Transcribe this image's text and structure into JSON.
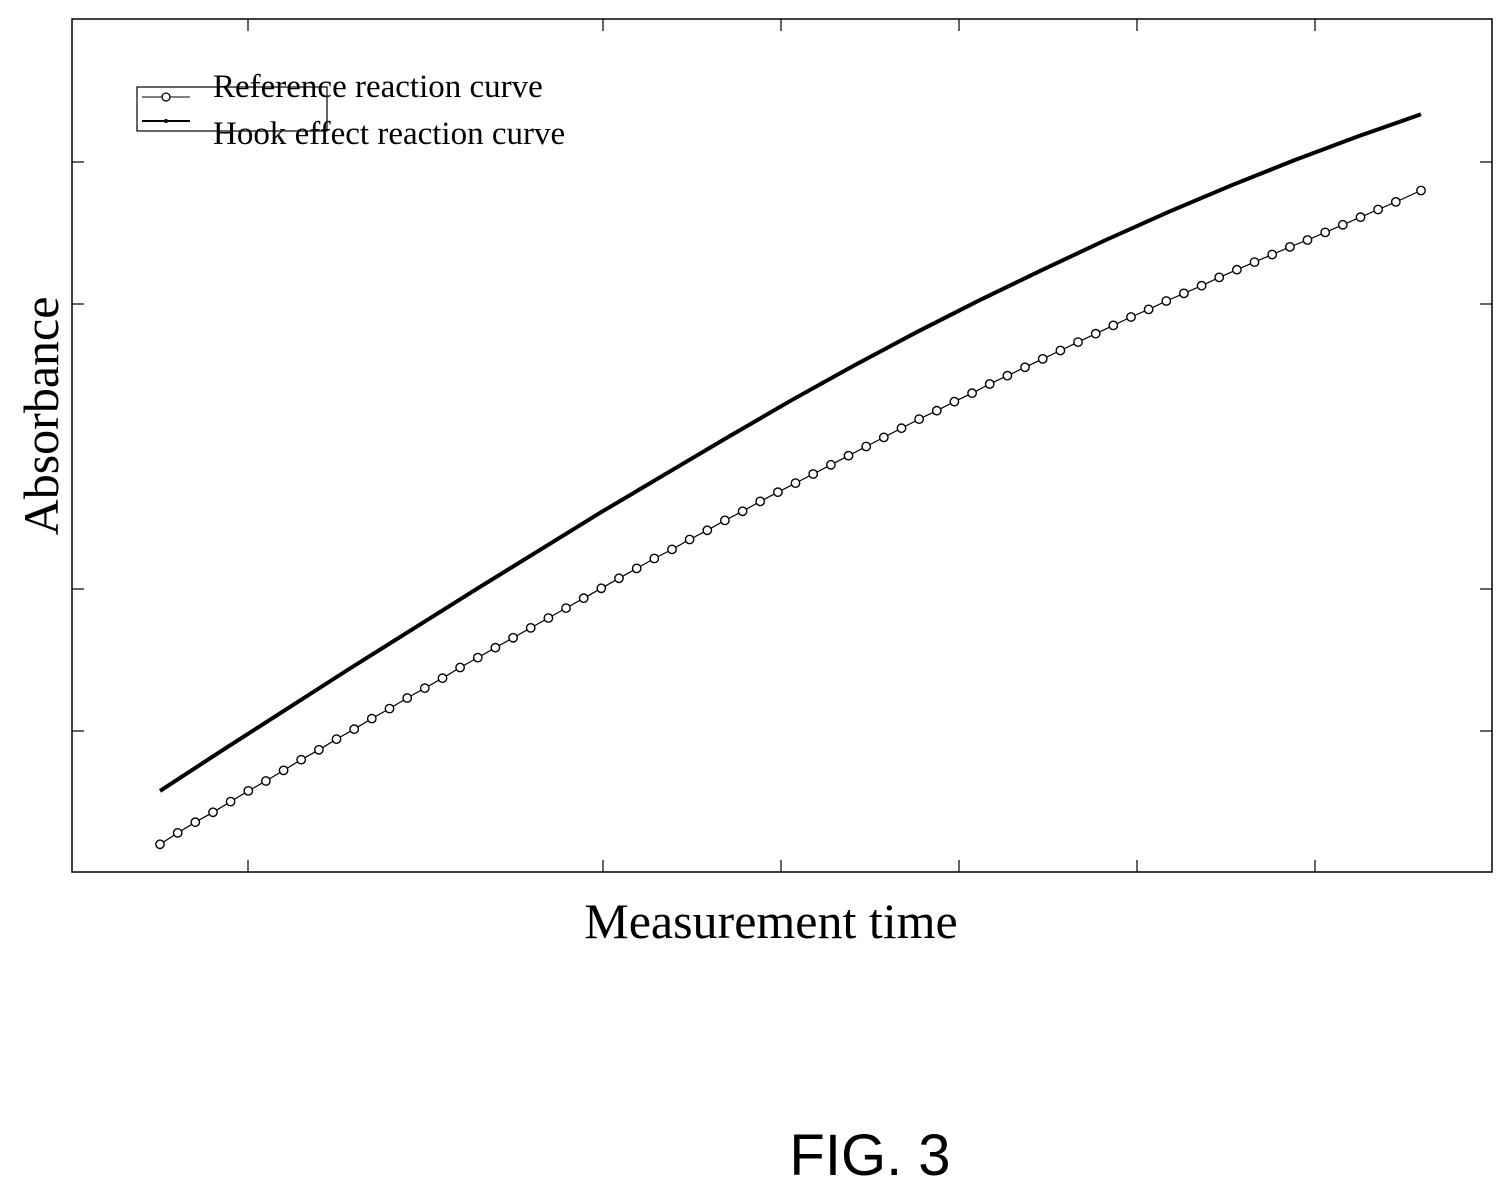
{
  "figure": {
    "caption": "FIG. 3"
  },
  "chart_data": {
    "type": "line",
    "title": "",
    "xlabel": "Measurement time",
    "ylabel": "Absorbance",
    "xlim": [
      0,
      100
    ],
    "ylim": [
      0,
      100
    ],
    "grid": false,
    "tick_labels": false,
    "legend": {
      "placement": "top-left"
    },
    "series": [
      {
        "name": "Reference reaction curve",
        "marker": "circle",
        "color": "#000000",
        "x": [
          0,
          1.4,
          2.8,
          4.2,
          5.6,
          7.0,
          8.4,
          9.8,
          11.2,
          12.6,
          14.0,
          15.4,
          16.8,
          18.2,
          19.6,
          21.0,
          22.4,
          23.8,
          25.2,
          26.6,
          28.0,
          29.4,
          30.8,
          32.2,
          33.6,
          35.0,
          36.4,
          37.8,
          39.2,
          40.6,
          42.0,
          43.4,
          44.8,
          46.2,
          47.6,
          49.0,
          50.4,
          51.8,
          53.2,
          54.6,
          56.0,
          57.4,
          58.8,
          60.2,
          61.6,
          63.0,
          64.4,
          65.8,
          67.2,
          68.6,
          70.0,
          71.4,
          72.8,
          74.2,
          75.6,
          77.0,
          78.4,
          79.8,
          81.2,
          82.6,
          84.0,
          85.4,
          86.8,
          88.2,
          89.6,
          91.0,
          92.4,
          93.8,
          95.2,
          96.6,
          98.0,
          100.0
        ],
        "y": [
          1.8,
          3.3,
          4.7,
          6.0,
          7.4,
          8.8,
          10.1,
          11.5,
          12.9,
          14.2,
          15.6,
          16.9,
          18.3,
          19.6,
          21.0,
          22.3,
          23.6,
          25.0,
          26.3,
          27.6,
          28.9,
          30.2,
          31.5,
          32.8,
          34.1,
          35.4,
          36.7,
          38.0,
          39.3,
          40.5,
          41.8,
          43.0,
          44.3,
          45.5,
          46.8,
          48.0,
          49.2,
          50.4,
          51.6,
          52.8,
          54.0,
          55.2,
          56.4,
          57.6,
          58.7,
          59.9,
          61.0,
          62.2,
          63.3,
          64.4,
          65.5,
          66.6,
          67.7,
          68.8,
          69.9,
          71.0,
          72.0,
          73.1,
          74.1,
          75.1,
          76.2,
          77.2,
          78.2,
          79.2,
          80.2,
          81.1,
          82.1,
          83.1,
          84.1,
          85.1,
          86.1,
          87.6
        ]
      },
      {
        "name": "Hook effect reaction curve",
        "marker": "dot",
        "color": "#000000",
        "x": [
          0,
          5,
          10,
          15,
          20,
          25,
          30,
          35,
          40,
          45,
          50,
          55,
          60,
          65,
          70,
          75,
          80,
          85,
          90,
          95,
          100
        ],
        "y": [
          8.8,
          14.2,
          19.5,
          24.8,
          30.0,
          35.2,
          40.3,
          45.4,
          50.3,
          55.2,
          60.0,
          64.6,
          69.0,
          73.2,
          77.2,
          81.1,
          84.8,
          88.3,
          91.6,
          94.7,
          97.6
        ]
      }
    ]
  }
}
